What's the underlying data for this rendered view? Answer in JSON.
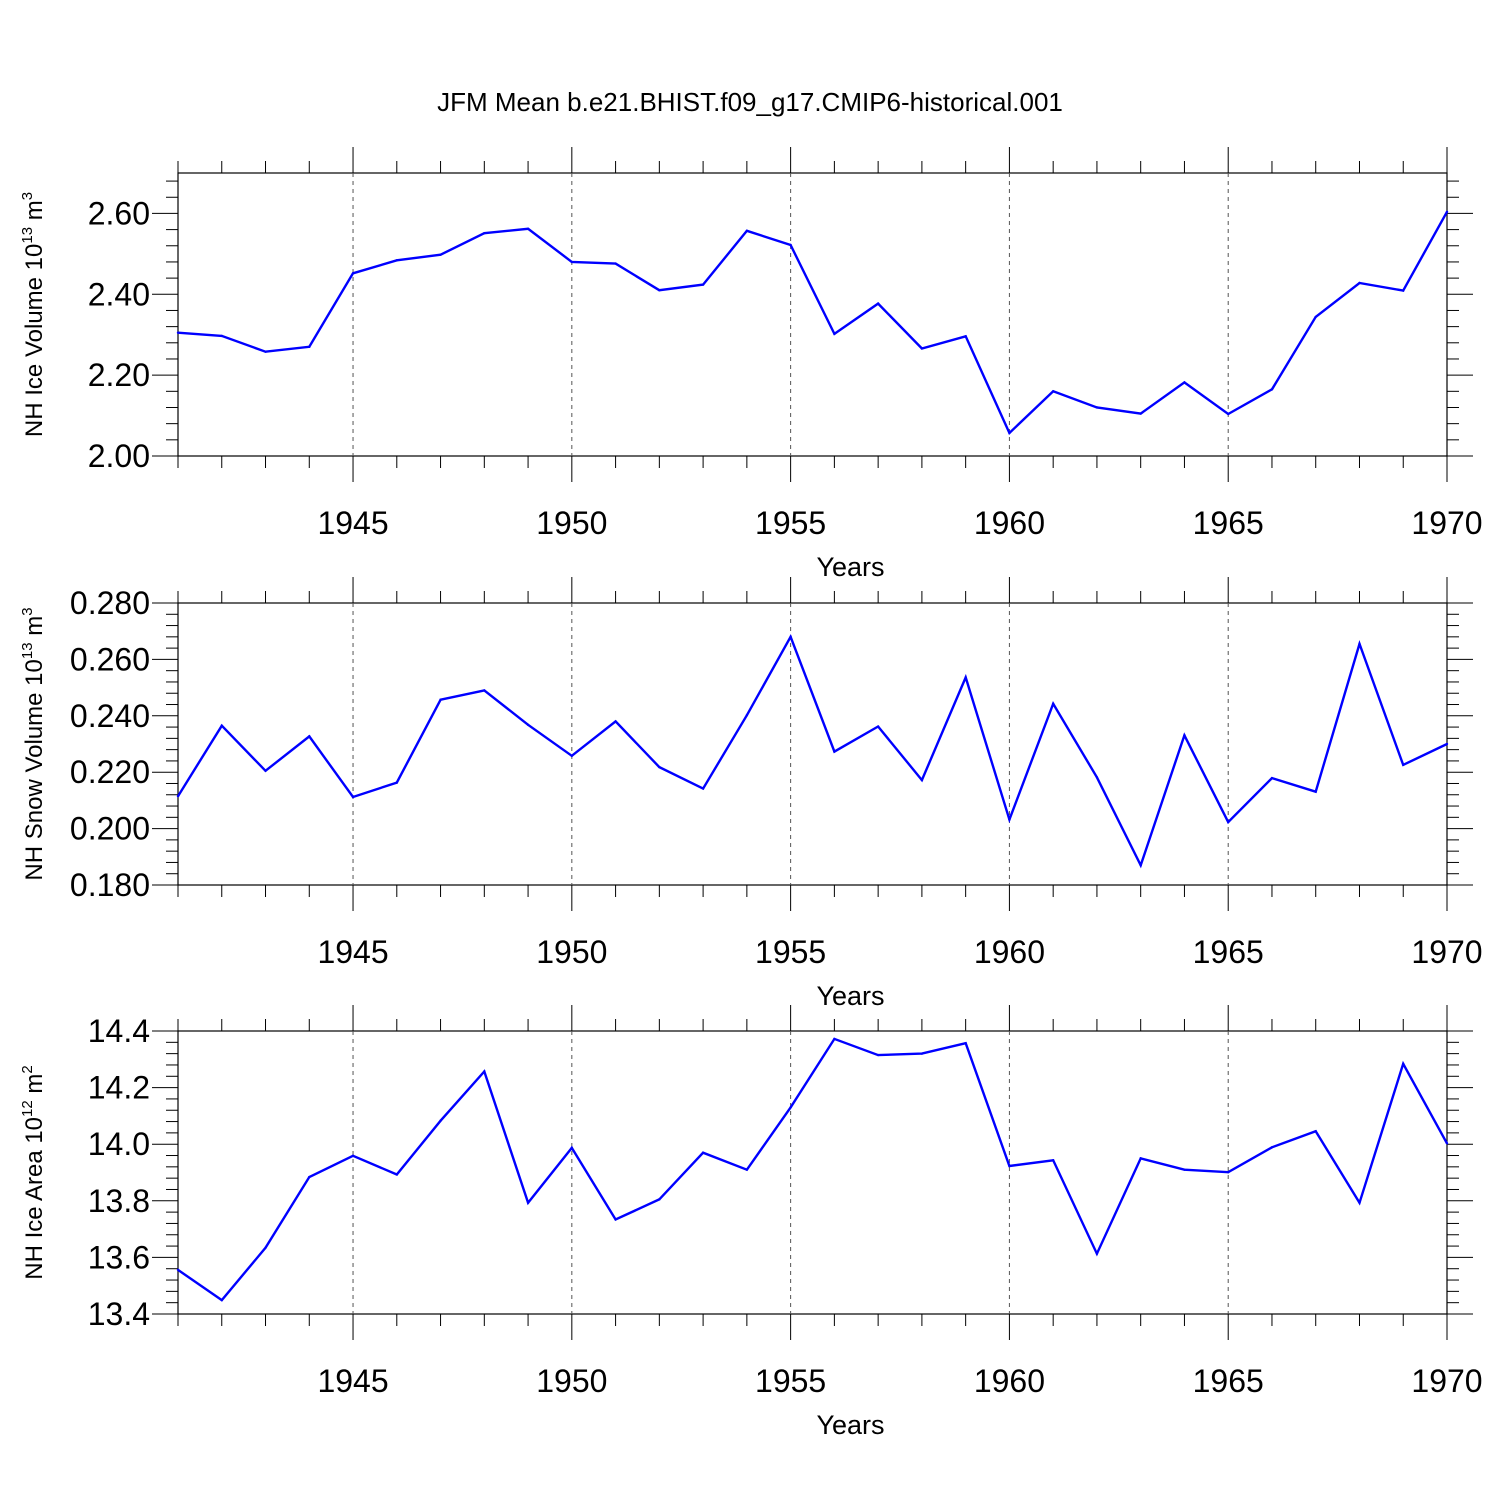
{
  "title": "JFM Mean b.e21.BHIST.f09_g17.CMIP6-historical.001",
  "line_color": "#0000ff",
  "chart_data": [
    {
      "type": "line",
      "ylabel": "NH Ice Volume 10",
      "ylabel_exp": "13",
      "ylabel_unit": " m",
      "ylabel_unit_exp": "3",
      "xlabel": "Years",
      "xlim": [
        1941,
        1970
      ],
      "ylim": [
        2.0,
        2.7
      ],
      "yticks": [
        "2.00",
        "2.20",
        "2.40",
        "2.60"
      ],
      "xticks": [
        "1945",
        "1950",
        "1955",
        "1960",
        "1965",
        "1970"
      ],
      "x": [
        1941,
        1942,
        1943,
        1944,
        1945,
        1946,
        1947,
        1948,
        1949,
        1950,
        1951,
        1952,
        1953,
        1954,
        1955,
        1956,
        1957,
        1958,
        1959,
        1960,
        1961,
        1962,
        1963,
        1964,
        1965,
        1966,
        1967,
        1968,
        1969,
        1970
      ],
      "values": [
        2.305,
        2.297,
        2.258,
        2.27,
        2.452,
        2.484,
        2.498,
        2.551,
        2.562,
        2.48,
        2.476,
        2.41,
        2.424,
        2.557,
        2.522,
        2.302,
        2.377,
        2.266,
        2.296,
        2.057,
        2.16,
        2.12,
        2.105,
        2.182,
        2.104,
        2.165,
        2.344,
        2.428,
        2.409,
        2.604
      ]
    },
    {
      "type": "line",
      "ylabel": "NH Snow Volume 10",
      "ylabel_exp": "13",
      "ylabel_unit": " m",
      "ylabel_unit_exp": "3",
      "xlabel": "Years",
      "xlim": [
        1941,
        1970
      ],
      "ylim": [
        0.18,
        0.28
      ],
      "yticks": [
        "0.180",
        "0.200",
        "0.220",
        "0.240",
        "0.260",
        "0.280"
      ],
      "xticks": [
        "1945",
        "1950",
        "1955",
        "1960",
        "1965",
        "1970"
      ],
      "x": [
        1941,
        1942,
        1943,
        1944,
        1945,
        1946,
        1947,
        1948,
        1949,
        1950,
        1951,
        1952,
        1953,
        1954,
        1955,
        1956,
        1957,
        1958,
        1959,
        1960,
        1961,
        1962,
        1963,
        1964,
        1965,
        1966,
        1967,
        1968,
        1969,
        1970
      ],
      "values": [
        0.2115,
        0.2365,
        0.2205,
        0.2327,
        0.2112,
        0.2163,
        0.2457,
        0.249,
        0.2368,
        0.2258,
        0.238,
        0.2218,
        0.2142,
        0.2402,
        0.268,
        0.2273,
        0.2362,
        0.2172,
        0.2536,
        0.2032,
        0.2443,
        0.2182,
        0.187,
        0.2331,
        0.2023,
        0.2179,
        0.2131,
        0.2655,
        0.2226,
        0.23
      ]
    },
    {
      "type": "line",
      "ylabel": "NH Ice Area 10",
      "ylabel_exp": "12",
      "ylabel_unit": " m",
      "ylabel_unit_exp": "2",
      "xlabel": "Years",
      "xlim": [
        1941,
        1970
      ],
      "ylim": [
        13.4,
        14.4
      ],
      "yticks": [
        "13.4",
        "13.6",
        "13.8",
        "14.0",
        "14.2",
        "14.4"
      ],
      "xticks": [
        "1945",
        "1950",
        "1955",
        "1960",
        "1965",
        "1970"
      ],
      "x": [
        1941,
        1942,
        1943,
        1944,
        1945,
        1946,
        1947,
        1948,
        1949,
        1950,
        1951,
        1952,
        1953,
        1954,
        1955,
        1956,
        1957,
        1958,
        1959,
        1960,
        1961,
        1962,
        1963,
        1964,
        1965,
        1966,
        1967,
        1968,
        1969,
        1970
      ],
      "values": [
        13.556,
        13.449,
        13.634,
        13.884,
        13.959,
        13.893,
        14.083,
        14.257,
        13.793,
        13.987,
        13.734,
        13.805,
        13.97,
        13.91,
        14.13,
        14.372,
        14.315,
        14.32,
        14.357,
        13.923,
        13.943,
        13.613,
        13.95,
        13.91,
        13.901,
        13.989,
        14.046,
        13.793,
        14.284,
        14.003
      ]
    }
  ]
}
